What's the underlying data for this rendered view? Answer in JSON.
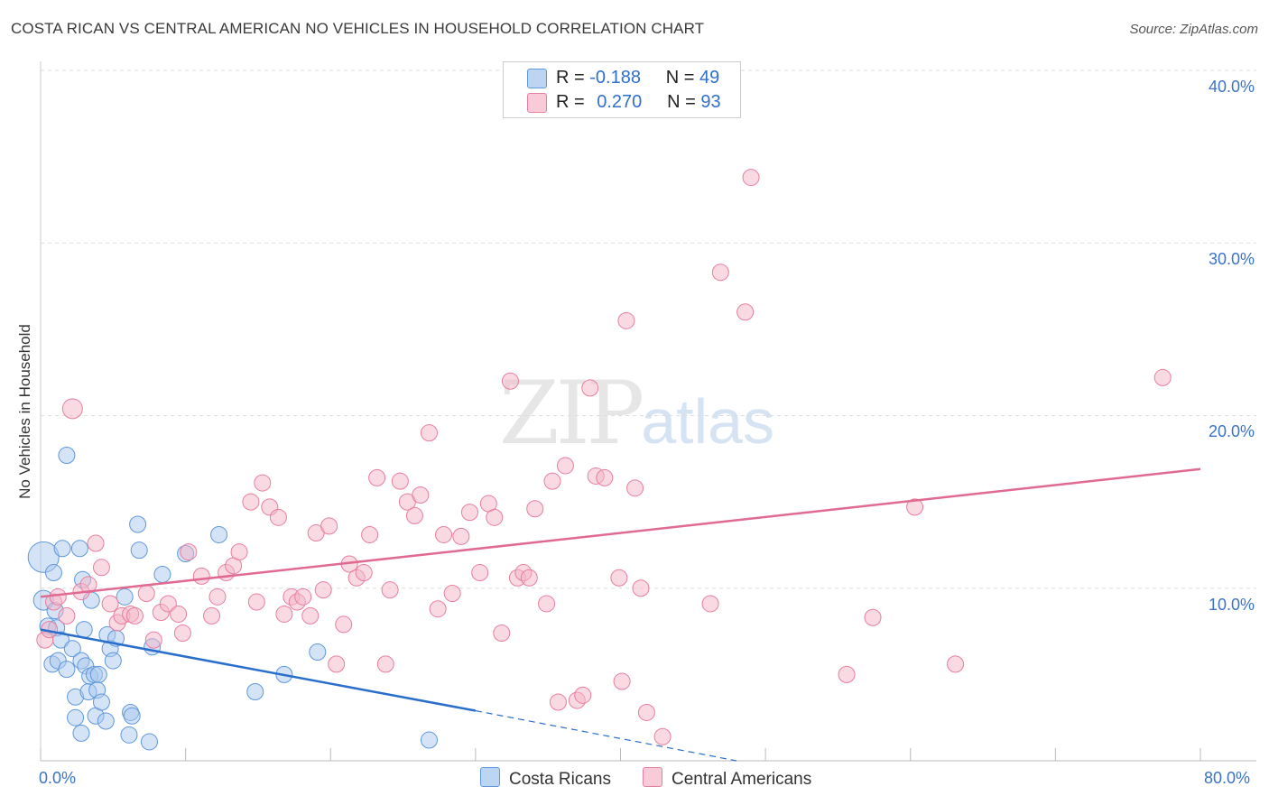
{
  "header": {
    "title": "COSTA RICAN VS CENTRAL AMERICAN NO VEHICLES IN HOUSEHOLD CORRELATION CHART",
    "source": "Source: ZipAtlas.com"
  },
  "watermark": {
    "zip": "ZIP",
    "atlas": "atlas"
  },
  "legend": {
    "rows": [
      {
        "r_label": "R =",
        "r_value": "-0.188",
        "n_label": "N =",
        "n_value": "49",
        "color": "#a9c8ee"
      },
      {
        "r_label": "R =",
        "r_value": "0.270",
        "n_label": "N =",
        "n_value": "93",
        "color": "#f4b5c8"
      }
    ]
  },
  "bottom_legend": {
    "series1": "Costa Ricans",
    "series2": "Central Americans"
  },
  "axes": {
    "ylabel": "No Vehicles in Household",
    "x_min_label": "0.0%",
    "x_max_label": "80.0%",
    "y_tick_labels": [
      "10.0%",
      "20.0%",
      "30.0%",
      "40.0%"
    ]
  },
  "colors": {
    "blue": "#5f98dc",
    "blue_fill": "#a9c8ee",
    "pink": "#e87ea0",
    "pink_fill": "#f4b5c8",
    "blue_line": "#2a6ecb",
    "pink_line": "#e06a92",
    "tick_text": "#3b73c7"
  },
  "chart_data": {
    "type": "scatter",
    "xlim": [
      0,
      80
    ],
    "ylim": [
      0,
      40
    ],
    "grid": "horizontal dashed",
    "series": [
      {
        "name": "Costa Ricans",
        "color": "#5f98dc",
        "points": [
          [
            0.2,
            11.8
          ],
          [
            0.2,
            9.3
          ],
          [
            0.5,
            7.8
          ],
          [
            0.8,
            5.6
          ],
          [
            0.9,
            10.9
          ],
          [
            1.0,
            8.7
          ],
          [
            1.1,
            7.7
          ],
          [
            1.2,
            5.8
          ],
          [
            1.4,
            7.0
          ],
          [
            1.5,
            12.3
          ],
          [
            1.8,
            5.3
          ],
          [
            1.8,
            17.7
          ],
          [
            2.2,
            6.5
          ],
          [
            2.4,
            3.7
          ],
          [
            2.4,
            2.5
          ],
          [
            2.7,
            12.3
          ],
          [
            2.8,
            1.6
          ],
          [
            2.8,
            5.8
          ],
          [
            2.9,
            10.5
          ],
          [
            3.0,
            7.6
          ],
          [
            3.1,
            5.5
          ],
          [
            3.3,
            4.0
          ],
          [
            3.4,
            4.9
          ],
          [
            3.5,
            9.3
          ],
          [
            3.7,
            5.0
          ],
          [
            3.8,
            2.6
          ],
          [
            3.9,
            4.1
          ],
          [
            4.0,
            5.0
          ],
          [
            4.2,
            3.4
          ],
          [
            4.5,
            2.3
          ],
          [
            4.6,
            7.3
          ],
          [
            4.8,
            6.5
          ],
          [
            5.0,
            5.8
          ],
          [
            5.2,
            7.1
          ],
          [
            5.8,
            9.5
          ],
          [
            6.1,
            1.5
          ],
          [
            6.2,
            2.8
          ],
          [
            6.3,
            2.6
          ],
          [
            6.7,
            13.7
          ],
          [
            6.8,
            12.2
          ],
          [
            7.5,
            1.1
          ],
          [
            7.7,
            6.6
          ],
          [
            8.4,
            10.8
          ],
          [
            10.0,
            12.0
          ],
          [
            12.3,
            13.1
          ],
          [
            14.8,
            4.0
          ],
          [
            16.8,
            5.0
          ],
          [
            19.1,
            6.3
          ],
          [
            26.8,
            1.2
          ]
        ]
      },
      {
        "name": "Central Americans",
        "color": "#e87ea0",
        "points": [
          [
            0.3,
            7.0
          ],
          [
            0.6,
            7.6
          ],
          [
            0.9,
            9.2
          ],
          [
            1.2,
            9.5
          ],
          [
            1.8,
            8.4
          ],
          [
            2.2,
            20.4
          ],
          [
            2.8,
            9.8
          ],
          [
            3.3,
            10.2
          ],
          [
            3.8,
            12.6
          ],
          [
            4.2,
            11.2
          ],
          [
            4.8,
            9.1
          ],
          [
            5.3,
            8.0
          ],
          [
            5.6,
            8.4
          ],
          [
            6.2,
            8.5
          ],
          [
            6.5,
            8.4
          ],
          [
            7.3,
            9.7
          ],
          [
            7.8,
            7.0
          ],
          [
            8.3,
            8.6
          ],
          [
            8.8,
            9.1
          ],
          [
            9.5,
            8.5
          ],
          [
            9.8,
            7.4
          ],
          [
            10.2,
            12.1
          ],
          [
            11.1,
            10.7
          ],
          [
            11.8,
            8.4
          ],
          [
            12.2,
            9.5
          ],
          [
            12.8,
            10.9
          ],
          [
            13.3,
            11.3
          ],
          [
            13.7,
            12.1
          ],
          [
            14.5,
            15.0
          ],
          [
            14.9,
            9.2
          ],
          [
            15.3,
            16.1
          ],
          [
            15.8,
            14.7
          ],
          [
            16.4,
            14.1
          ],
          [
            16.8,
            8.5
          ],
          [
            17.3,
            9.5
          ],
          [
            17.7,
            9.2
          ],
          [
            18.1,
            9.5
          ],
          [
            18.6,
            8.4
          ],
          [
            19.0,
            13.2
          ],
          [
            19.5,
            9.9
          ],
          [
            19.9,
            13.6
          ],
          [
            20.4,
            5.6
          ],
          [
            20.9,
            7.9
          ],
          [
            21.3,
            11.4
          ],
          [
            21.8,
            10.6
          ],
          [
            22.3,
            10.9
          ],
          [
            22.7,
            13.1
          ],
          [
            23.2,
            16.4
          ],
          [
            23.8,
            5.6
          ],
          [
            24.1,
            9.9
          ],
          [
            24.8,
            16.2
          ],
          [
            25.3,
            15.0
          ],
          [
            25.8,
            14.2
          ],
          [
            26.2,
            15.4
          ],
          [
            26.8,
            19.0
          ],
          [
            27.4,
            8.8
          ],
          [
            27.8,
            13.1
          ],
          [
            28.4,
            9.7
          ],
          [
            29.0,
            13.0
          ],
          [
            29.6,
            14.4
          ],
          [
            30.3,
            10.9
          ],
          [
            30.9,
            14.9
          ],
          [
            31.3,
            14.1
          ],
          [
            31.8,
            7.4
          ],
          [
            32.4,
            22.0
          ],
          [
            32.9,
            10.6
          ],
          [
            33.3,
            10.9
          ],
          [
            33.7,
            10.6
          ],
          [
            34.1,
            14.6
          ],
          [
            34.9,
            9.1
          ],
          [
            35.3,
            16.2
          ],
          [
            35.7,
            3.4
          ],
          [
            36.2,
            17.1
          ],
          [
            37.0,
            3.5
          ],
          [
            37.4,
            3.8
          ],
          [
            37.9,
            21.6
          ],
          [
            38.3,
            16.5
          ],
          [
            38.9,
            16.4
          ],
          [
            39.9,
            10.6
          ],
          [
            40.1,
            4.6
          ],
          [
            40.4,
            25.5
          ],
          [
            41.0,
            15.8
          ],
          [
            41.4,
            10.0
          ],
          [
            41.8,
            2.8
          ],
          [
            42.9,
            1.4
          ],
          [
            46.2,
            9.1
          ],
          [
            46.9,
            28.3
          ],
          [
            48.6,
            26.0
          ],
          [
            49.0,
            33.8
          ],
          [
            55.6,
            5.0
          ],
          [
            57.4,
            8.3
          ],
          [
            60.3,
            14.7
          ],
          [
            63.1,
            5.6
          ],
          [
            77.4,
            22.2
          ]
        ]
      }
    ],
    "trendlines": [
      {
        "series": "Costa Ricans",
        "x": [
          0,
          30
        ],
        "y": [
          7.6,
          2.9
        ],
        "extended_dashed_to": [
          48,
          0.0
        ]
      },
      {
        "series": "Central Americans",
        "x": [
          0,
          80
        ],
        "y": [
          9.5,
          16.9
        ]
      }
    ]
  }
}
